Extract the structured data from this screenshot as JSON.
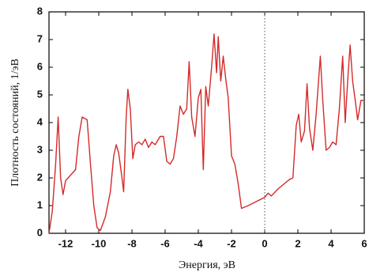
{
  "chart_data": {
    "type": "line",
    "xlabel": "Энергия, эВ",
    "ylabel": "Плотность состояний, 1/эВ",
    "xlim": [
      -13,
      6
    ],
    "ylim": [
      0,
      8
    ],
    "xticks": [
      -12,
      -10,
      -8,
      -6,
      -4,
      -2,
      0,
      2,
      4,
      6
    ],
    "yticks": [
      0,
      1,
      2,
      3,
      4,
      5,
      6,
      7,
      8
    ],
    "reference_x": 0,
    "series": [
      {
        "color": "#d42a2a",
        "x": [
          -13.0,
          -12.8,
          -12.6,
          -12.45,
          -12.3,
          -12.15,
          -12.0,
          -11.7,
          -11.4,
          -11.2,
          -11.0,
          -10.7,
          -10.5,
          -10.3,
          -10.1,
          -9.9,
          -9.6,
          -9.3,
          -9.1,
          -8.95,
          -8.8,
          -8.6,
          -8.5,
          -8.35,
          -8.25,
          -8.1,
          -7.95,
          -7.8,
          -7.6,
          -7.4,
          -7.2,
          -7.0,
          -6.8,
          -6.6,
          -6.3,
          -6.1,
          -5.9,
          -5.7,
          -5.5,
          -5.3,
          -5.1,
          -4.9,
          -4.7,
          -4.55,
          -4.4,
          -4.2,
          -4.0,
          -3.85,
          -3.7,
          -3.55,
          -3.4,
          -3.2,
          -3.05,
          -2.9,
          -2.8,
          -2.65,
          -2.5,
          -2.35,
          -2.2,
          -2.0,
          -1.8,
          -1.6,
          -1.4,
          -1.0,
          -0.5,
          0.0,
          0.2,
          0.4,
          0.8,
          1.2,
          1.5,
          1.7,
          1.9,
          2.05,
          2.2,
          2.4,
          2.55,
          2.7,
          2.9,
          3.1,
          3.35,
          3.5,
          3.7,
          3.9,
          4.1,
          4.3,
          4.5,
          4.7,
          4.85,
          5.0,
          5.15,
          5.3,
          5.5,
          5.6,
          5.8,
          5.95
        ],
        "values": [
          0.0,
          0.8,
          2.5,
          4.2,
          2.0,
          1.4,
          1.9,
          2.1,
          2.3,
          3.5,
          4.2,
          4.1,
          2.5,
          1.0,
          0.2,
          0.1,
          0.6,
          1.5,
          2.8,
          3.2,
          2.9,
          2.0,
          1.5,
          4.2,
          5.2,
          4.5,
          2.7,
          3.2,
          3.3,
          3.2,
          3.4,
          3.1,
          3.3,
          3.2,
          3.5,
          3.5,
          2.6,
          2.5,
          2.7,
          3.5,
          4.6,
          4.3,
          4.5,
          6.2,
          4.2,
          3.5,
          4.9,
          5.2,
          2.3,
          5.3,
          4.6,
          6.0,
          7.2,
          5.8,
          7.1,
          5.5,
          6.4,
          5.6,
          4.9,
          2.8,
          2.5,
          1.8,
          0.9,
          1.0,
          1.15,
          1.3,
          1.45,
          1.35,
          1.6,
          1.8,
          1.95,
          2.0,
          3.9,
          4.3,
          3.3,
          3.7,
          5.4,
          3.8,
          3.0,
          4.3,
          6.4,
          4.8,
          3.0,
          3.1,
          3.3,
          3.2,
          4.5,
          6.4,
          4.0,
          5.5,
          6.8,
          5.5,
          4.6,
          4.1,
          4.8,
          4.8
        ]
      }
    ]
  }
}
